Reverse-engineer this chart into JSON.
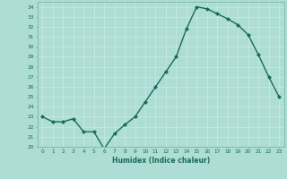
{
  "x": [
    0,
    1,
    2,
    3,
    4,
    5,
    6,
    7,
    8,
    9,
    10,
    11,
    12,
    13,
    14,
    15,
    16,
    17,
    18,
    19,
    20,
    21,
    22,
    23
  ],
  "y": [
    23.0,
    22.5,
    22.5,
    22.8,
    21.5,
    21.5,
    19.8,
    21.3,
    22.2,
    23.0,
    24.5,
    26.0,
    27.5,
    29.0,
    31.8,
    34.0,
    33.8,
    33.3,
    32.8,
    32.2,
    31.2,
    29.2,
    27.0,
    25.0
  ],
  "xlabel": "Humidex (Indice chaleur)",
  "ylim": [
    20,
    34.5
  ],
  "xlim": [
    -0.5,
    23.5
  ],
  "yticks": [
    20,
    21,
    22,
    23,
    24,
    25,
    26,
    27,
    28,
    29,
    30,
    31,
    32,
    33,
    34
  ],
  "xticks": [
    0,
    1,
    2,
    3,
    4,
    5,
    6,
    7,
    8,
    9,
    10,
    11,
    12,
    13,
    14,
    15,
    16,
    17,
    18,
    19,
    20,
    21,
    22,
    23
  ],
  "line_color": "#1a6b5a",
  "marker_color": "#1a6b5a",
  "bg_color": "#adddd4",
  "grid_color": "#c8e8e2",
  "tick_label_color": "#1a6b5a",
  "xlabel_color": "#1a6b5a",
  "axis_color": "#7ab8ac"
}
